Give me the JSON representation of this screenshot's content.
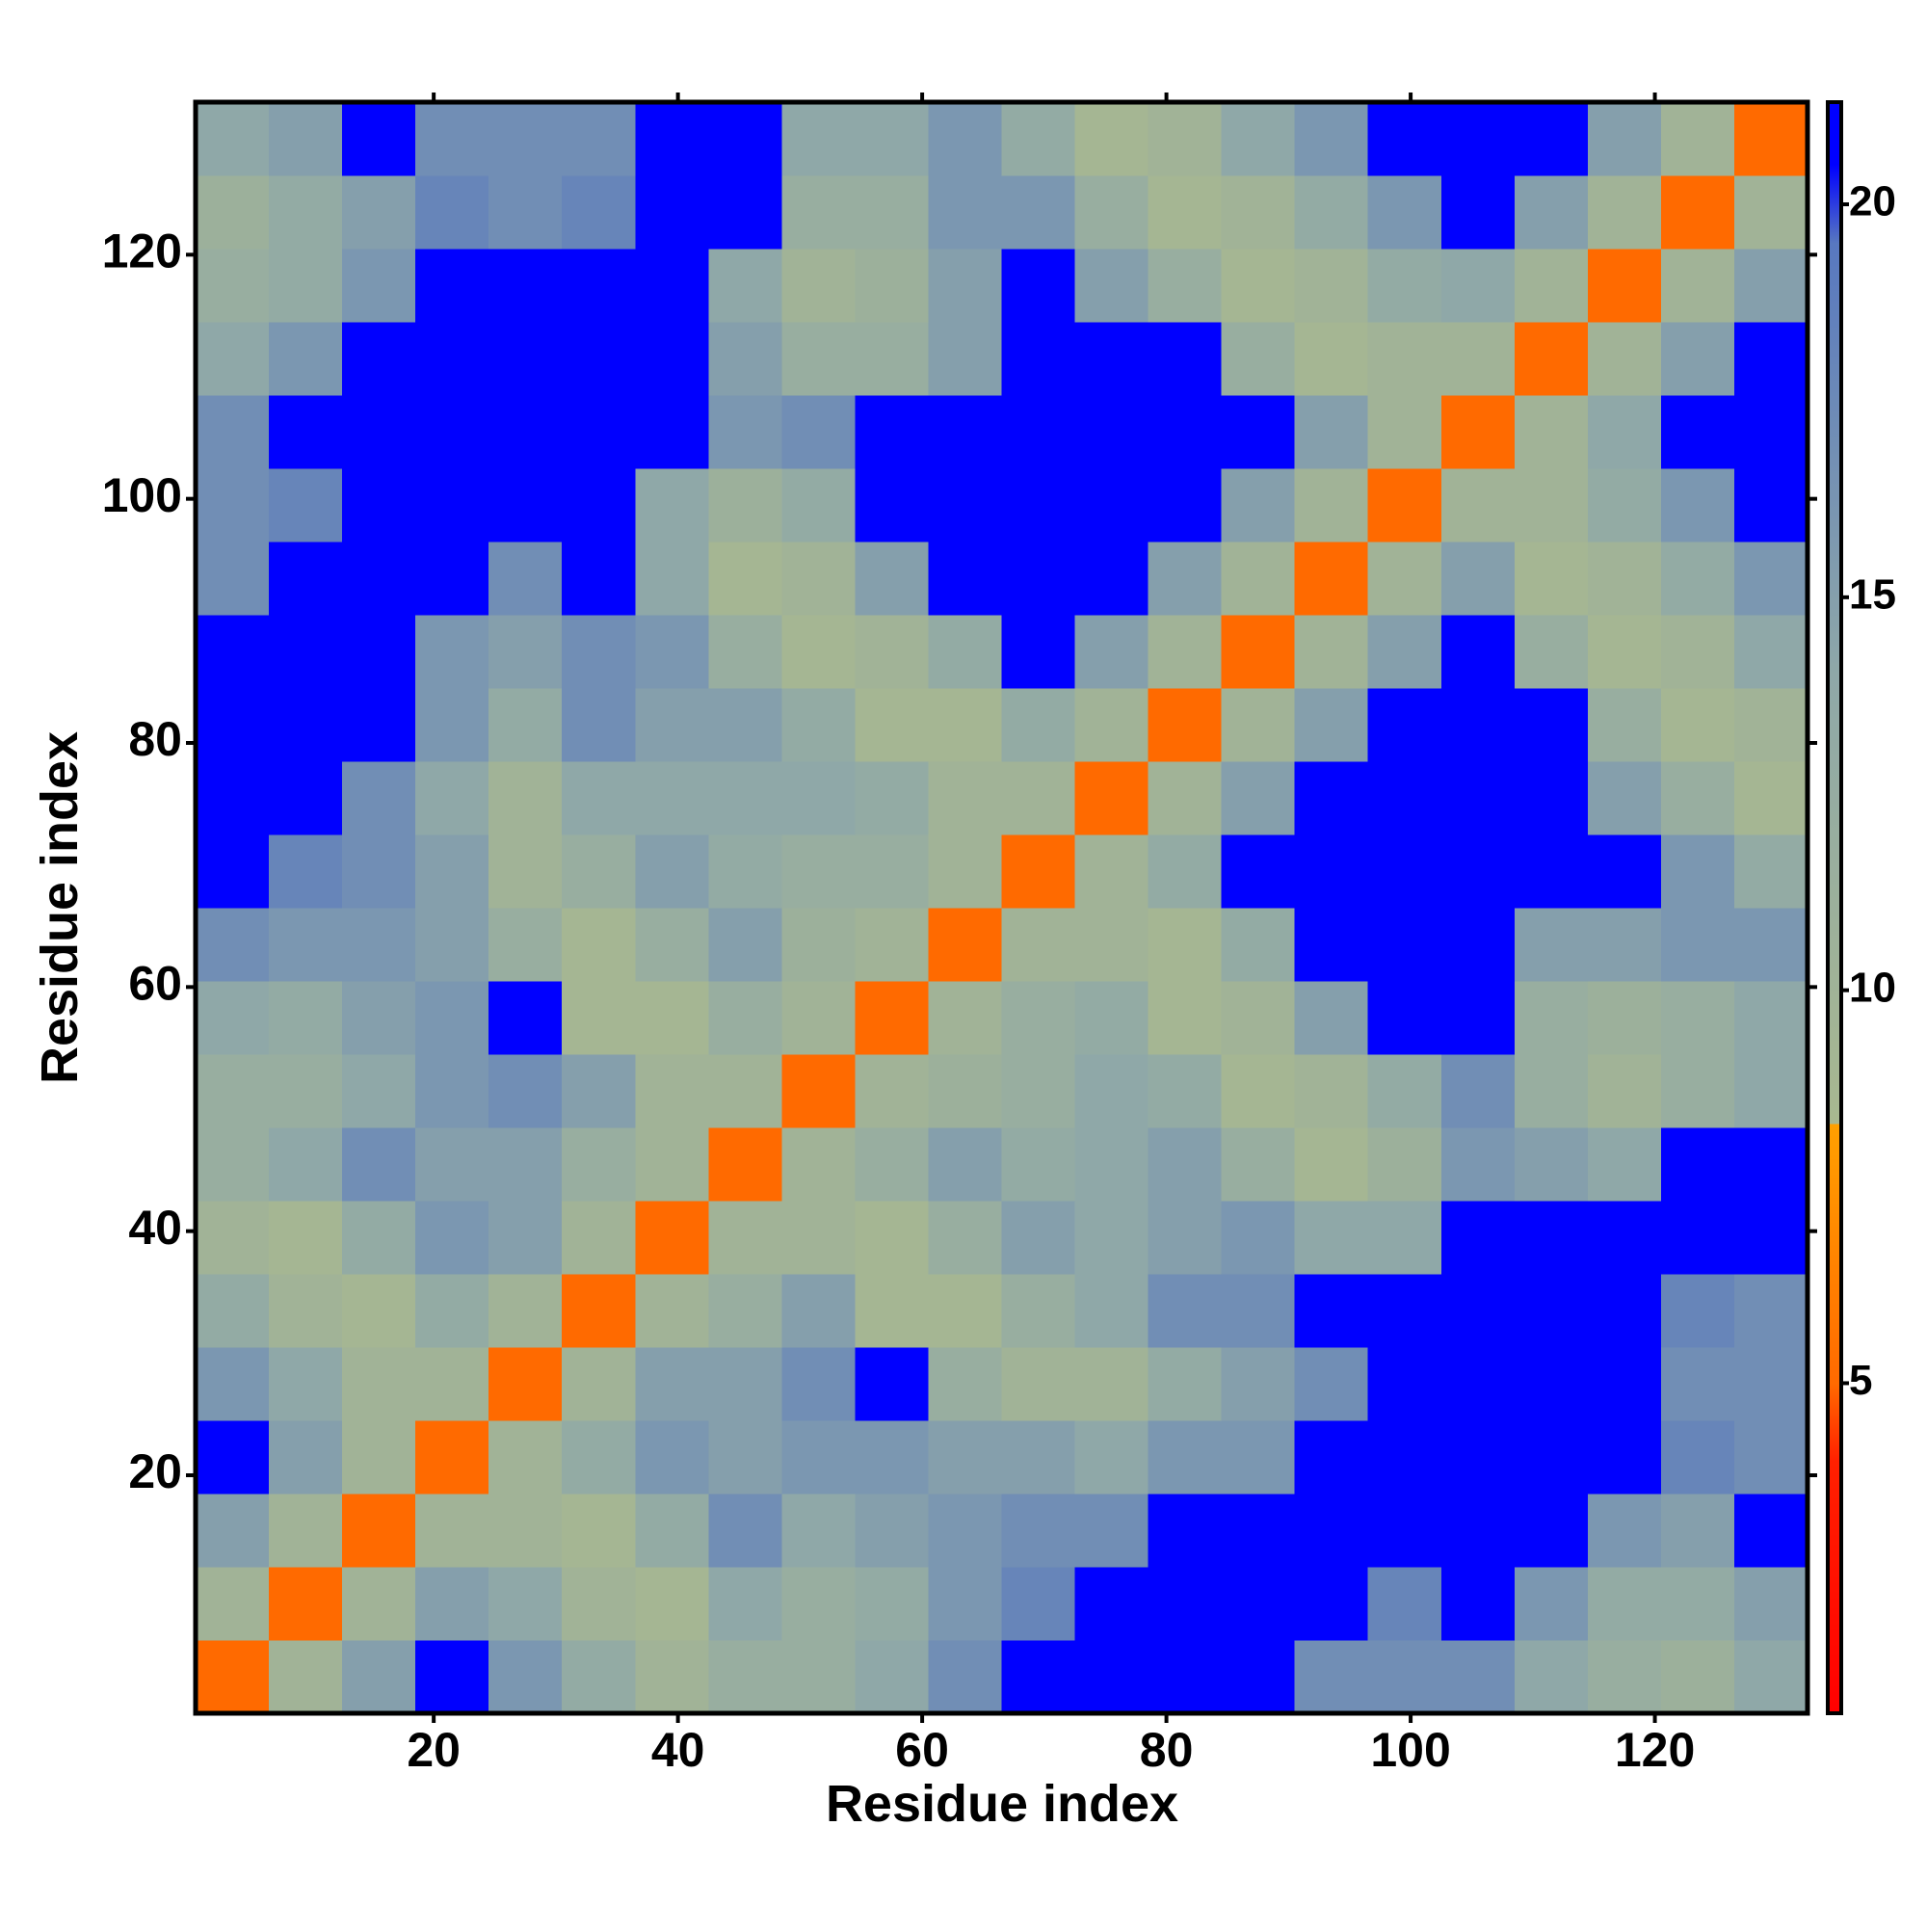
{
  "chart_data": {
    "type": "heatmap",
    "xlabel": "Residue index",
    "ylabel": "Residue index",
    "xbins": [
      0.5,
      6.5,
      12.5,
      18.5,
      24.5,
      30.5,
      36.5,
      42.5,
      48.5,
      54.5,
      60.5,
      66.5,
      72.5,
      78.5,
      84.5,
      90.5,
      96.5,
      102.5,
      108.5,
      114.5,
      120.5,
      126.5,
      132.5
    ],
    "ybins": [
      0.5,
      6.5,
      12.5,
      18.5,
      24.5,
      30.5,
      36.5,
      42.5,
      48.5,
      54.5,
      60.5,
      66.5,
      72.5,
      78.5,
      84.5,
      90.5,
      96.5,
      102.5,
      108.5,
      114.5,
      120.5,
      126.5,
      132.5
    ],
    "values": [
      [
        5,
        10,
        15,
        21,
        16,
        13,
        10,
        12,
        12,
        14,
        17,
        21,
        21,
        21,
        21,
        17,
        17,
        17,
        14,
        12,
        11,
        14
      ],
      [
        10,
        5,
        10,
        15,
        14,
        10,
        9,
        14,
        12,
        13,
        16,
        18,
        21,
        21,
        21,
        21,
        18,
        21,
        16,
        13,
        13,
        15
      ],
      [
        15,
        10,
        5,
        10,
        10,
        9,
        13,
        17,
        14,
        15,
        16,
        17,
        17,
        21,
        21,
        21,
        21,
        21,
        21,
        16,
        15,
        21
      ],
      [
        21,
        15,
        10,
        5,
        10,
        13,
        16,
        15,
        16,
        16,
        15,
        15,
        14,
        16,
        16,
        21,
        21,
        21,
        21,
        21,
        18,
        17
      ],
      [
        16,
        14,
        10,
        10,
        5,
        10,
        15,
        15,
        17,
        21,
        12,
        10,
        10,
        13,
        15,
        17,
        21,
        21,
        21,
        21,
        17,
        17
      ],
      [
        13,
        10,
        9,
        13,
        10,
        5,
        10,
        12,
        15,
        9,
        9,
        12,
        14,
        17,
        17,
        21,
        21,
        21,
        21,
        21,
        18,
        17
      ],
      [
        10,
        9,
        13,
        16,
        15,
        10,
        5,
        10,
        10,
        9,
        12,
        15,
        14,
        15,
        16,
        14,
        14,
        21,
        21,
        21,
        21,
        21
      ],
      [
        12,
        14,
        17,
        15,
        15,
        12,
        10,
        5,
        10,
        12,
        15,
        13,
        14,
        15,
        12,
        9,
        11,
        16,
        15,
        14,
        21,
        21
      ],
      [
        12,
        12,
        14,
        16,
        17,
        15,
        10,
        10,
        5,
        10,
        11,
        12,
        14,
        13,
        9,
        10,
        13,
        17,
        12,
        10,
        12,
        14
      ],
      [
        14,
        13,
        15,
        16,
        21,
        9,
        9,
        12,
        10,
        5,
        10,
        12,
        13,
        9,
        10,
        15,
        21,
        21,
        12,
        11,
        12,
        14
      ],
      [
        17,
        16,
        16,
        15,
        12,
        9,
        12,
        15,
        11,
        10,
        5,
        10,
        10,
        9,
        13,
        21,
        21,
        21,
        15,
        15,
        16,
        16
      ],
      [
        21,
        18,
        17,
        15,
        10,
        12,
        15,
        13,
        12,
        12,
        10,
        5,
        10,
        13,
        21,
        21,
        21,
        21,
        21,
        21,
        16,
        13
      ],
      [
        21,
        21,
        17,
        14,
        10,
        14,
        14,
        14,
        14,
        13,
        10,
        10,
        5,
        10,
        15,
        21,
        21,
        21,
        21,
        15,
        12,
        9
      ],
      [
        21,
        21,
        21,
        16,
        13,
        17,
        15,
        15,
        13,
        9,
        9,
        13,
        10,
        5,
        10,
        15,
        21,
        21,
        21,
        12,
        9,
        10
      ],
      [
        21,
        21,
        21,
        16,
        15,
        17,
        16,
        12,
        9,
        10,
        13,
        21,
        15,
        10,
        5,
        10,
        15,
        21,
        12,
        9,
        10,
        14
      ],
      [
        17,
        21,
        21,
        21,
        17,
        21,
        14,
        9,
        10,
        15,
        21,
        21,
        21,
        15,
        10,
        5,
        10,
        15,
        9,
        10,
        13,
        16
      ],
      [
        17,
        18,
        21,
        21,
        21,
        21,
        14,
        11,
        13,
        21,
        21,
        21,
        21,
        21,
        15,
        10,
        5,
        10,
        10,
        13,
        16,
        21
      ],
      [
        17,
        21,
        21,
        21,
        21,
        21,
        21,
        16,
        17,
        21,
        21,
        21,
        21,
        21,
        21,
        15,
        10,
        5,
        10,
        14,
        21,
        21
      ],
      [
        14,
        16,
        21,
        21,
        21,
        21,
        21,
        15,
        12,
        12,
        15,
        21,
        21,
        21,
        12,
        9,
        10,
        10,
        5,
        10,
        15,
        21
      ],
      [
        12,
        13,
        16,
        21,
        21,
        21,
        21,
        14,
        10,
        11,
        15,
        21,
        15,
        12,
        9,
        10,
        13,
        14,
        10,
        5,
        10,
        15
      ],
      [
        11,
        13,
        15,
        18,
        17,
        18,
        21,
        21,
        12,
        12,
        16,
        16,
        12,
        9,
        10,
        13,
        16,
        21,
        15,
        10,
        5,
        10
      ],
      [
        14,
        15,
        21,
        17,
        17,
        17,
        21,
        21,
        14,
        14,
        16,
        13,
        9,
        10,
        14,
        16,
        21,
        21,
        21,
        15,
        10,
        5
      ]
    ],
    "xlim": [
      0.5,
      132.5
    ],
    "ylim": [
      0.5,
      132.5
    ],
    "xticks": [
      20,
      40,
      60,
      80,
      100,
      120
    ],
    "yticks": [
      20,
      40,
      60,
      80,
      100,
      120
    ],
    "zlim": [
      0.8,
      21.3
    ],
    "cticks": [
      5,
      10,
      15,
      20
    ],
    "colorscale": [
      [
        0.8,
        "#ff0000"
      ],
      [
        4,
        "#ff2000"
      ],
      [
        5,
        "#ff6a00"
      ],
      [
        8.3,
        "#ffa000"
      ],
      [
        8.3,
        "#a8b890"
      ],
      [
        14,
        "#8fa8a8"
      ],
      [
        19.5,
        "#5878c0"
      ],
      [
        20.5,
        "#0000ff"
      ],
      [
        21.3,
        "#0000ff"
      ]
    ]
  }
}
